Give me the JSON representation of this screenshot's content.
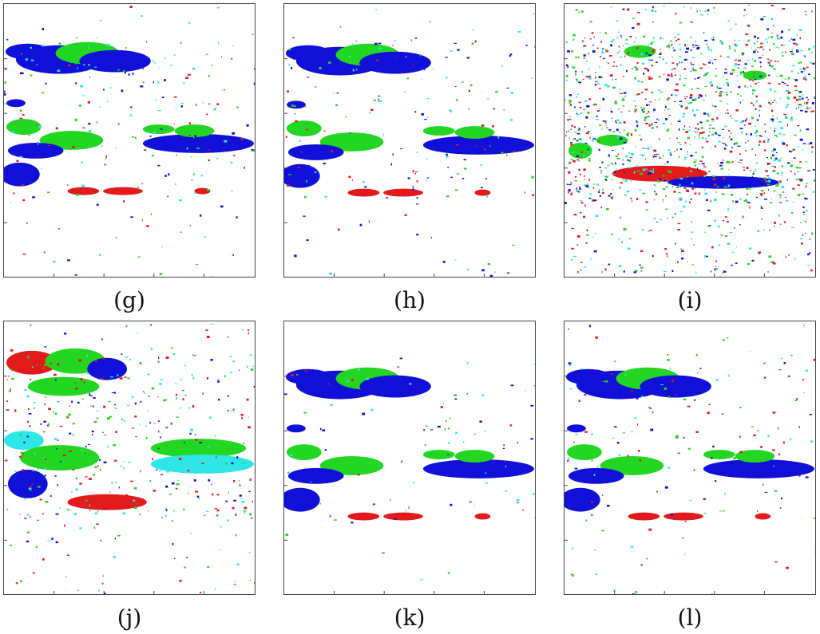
{
  "figure": {
    "colors": {
      "red": "#e31a1c",
      "green": "#22d622",
      "blue": "#1010d8",
      "cyan": "#2ee6e6",
      "frame": "#444444"
    },
    "panels": [
      {
        "id": "g",
        "caption": "(g)"
      },
      {
        "id": "h",
        "caption": "(h)"
      },
      {
        "id": "i",
        "caption": "(i)"
      },
      {
        "id": "j",
        "caption": "(j)"
      },
      {
        "id": "k",
        "caption": "(k)"
      },
      {
        "id": "l",
        "caption": "(l)"
      }
    ]
  }
}
